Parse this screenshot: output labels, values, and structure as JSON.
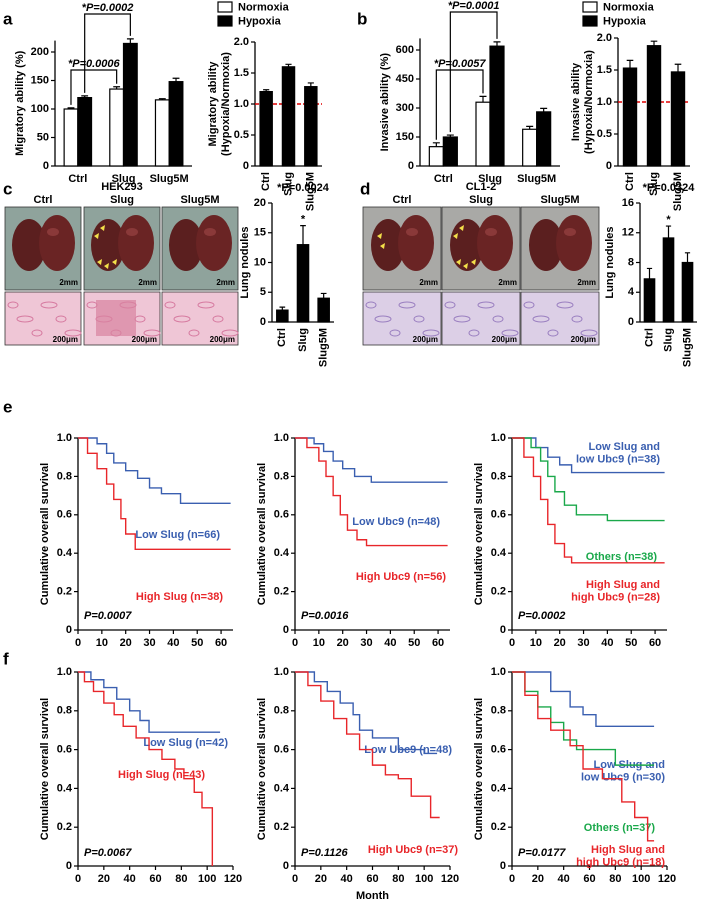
{
  "chart_data": [
    {
      "type": "bar",
      "panel": "a",
      "categories": [
        "Ctrl",
        "Slug",
        "Slug5M"
      ],
      "series": [
        {
          "name": "Normoxia",
          "color": "#ffffff",
          "values": [
            100,
            135,
            116
          ],
          "errors": [
            2,
            4,
            2
          ]
        },
        {
          "name": "Hypoxia",
          "color": "#000000",
          "values": [
            120,
            215,
            148
          ],
          "errors": [
            3,
            8,
            6
          ]
        }
      ],
      "ylim": [
        0,
        220
      ],
      "yticks": [
        0,
        50,
        100,
        150,
        200
      ],
      "ylabel": "Migratory ability (%)",
      "annotations": [
        "*P=0.0002",
        "*P=0.0006"
      ]
    },
    {
      "type": "bar",
      "categories": [
        "Ctrl",
        "Slug",
        "Slug5M"
      ],
      "values": [
        1.2,
        1.6,
        1.28
      ],
      "errors": [
        0.03,
        0.04,
        0.06
      ],
      "color": "#000000",
      "ylim": [
        0,
        2
      ],
      "yticks": [
        0,
        0.5,
        {
          "value": 1,
          "label": "1.0"
        },
        1.5,
        {
          "value": 2,
          "label": "2.0"
        }
      ],
      "ylabel": [
        "Migratory ability",
        "(Hypoxia/Normoxia)"
      ],
      "reference_line": {
        "value": 1,
        "color": "#e00000"
      }
    },
    {
      "type": "bar",
      "panel": "b",
      "categories": [
        "Ctrl",
        "Slug",
        "Slug5M"
      ],
      "series": [
        {
          "name": "Normoxia",
          "color": "#ffffff",
          "values": [
            100,
            330,
            190
          ],
          "errors": [
            20,
            30,
            15
          ]
        },
        {
          "name": "Hypoxia",
          "color": "#000000",
          "values": [
            150,
            620,
            280
          ],
          "errors": [
            10,
            22,
            18
          ]
        }
      ],
      "ylim": [
        0,
        660
      ],
      "yticks": [
        0,
        150,
        300,
        450,
        600
      ],
      "ylabel": "Invasive ability (%)",
      "annotations": [
        "*P=0.0001",
        "*P=0.0057"
      ]
    },
    {
      "type": "bar",
      "categories": [
        "Ctrl",
        "Slug",
        "Slug5M"
      ],
      "values": [
        1.53,
        1.88,
        1.47
      ],
      "errors": [
        0.12,
        0.07,
        0.12
      ],
      "color": "#000000",
      "ylim": [
        0,
        2
      ],
      "yticks": [
        0,
        0.5,
        {
          "value": 1,
          "label": "1.0"
        },
        1.5,
        {
          "value": 2,
          "label": "2.0"
        }
      ],
      "ylabel": [
        "Invasive ability",
        "(Hypoxia/Normoxia)"
      ],
      "reference_line": {
        "value": 1,
        "color": "#e00000"
      }
    },
    {
      "type": "bar",
      "title": "*P=0.0024",
      "categories": [
        "Ctrl",
        "Slug",
        "Slug5M"
      ],
      "values": [
        2,
        13,
        4
      ],
      "errors": [
        0.5,
        3.2,
        0.8
      ],
      "color": "#000000",
      "significance": [
        null,
        "*",
        null
      ],
      "ylim": [
        0,
        20
      ],
      "yticks": [
        0,
        5,
        10,
        15,
        20
      ],
      "ylabel": "Lung nodules"
    },
    {
      "type": "bar",
      "title": "*P=0.0324",
      "categories": [
        "Ctrl",
        "Slug",
        "Slug5M"
      ],
      "values": [
        5.8,
        11.3,
        8
      ],
      "errors": [
        1.4,
        1.6,
        1.3
      ],
      "color": "#000000",
      "significance": [
        null,
        "*",
        null
      ],
      "ylim": [
        0,
        16
      ],
      "yticks": [
        0,
        4,
        8,
        12,
        16
      ],
      "ylabel": "Lung nodules"
    },
    {
      "type": "line",
      "step": true,
      "panel": "e",
      "xlim": [
        0,
        65
      ],
      "xticks": [
        0,
        10,
        20,
        30,
        40,
        50,
        60
      ],
      "ylim": [
        0,
        1
      ],
      "yticks": [
        0,
        0.2,
        0.4,
        0.6,
        0.8,
        {
          "value": 1,
          "label": "1.0"
        }
      ],
      "ylabel": "Cumulative overall survival",
      "annotation": "P=0.0007",
      "series": [
        {
          "name": "Low Slug (n=66)",
          "color": "#3a5fb0",
          "x": [
            0,
            8,
            12,
            15,
            20,
            25,
            30,
            35,
            43,
            64
          ],
          "values": [
            1,
            0.97,
            0.92,
            0.87,
            0.83,
            0.79,
            0.74,
            0.71,
            0.66,
            0.66
          ]
        },
        {
          "name": "High Slug (n=38)",
          "color": "#e8262a",
          "x": [
            0,
            4,
            8,
            12,
            15,
            18,
            20,
            24,
            64
          ],
          "values": [
            1,
            0.92,
            0.84,
            0.76,
            0.68,
            0.58,
            0.5,
            0.42,
            0.42
          ]
        }
      ]
    },
    {
      "type": "line",
      "step": true,
      "xlim": [
        0,
        65
      ],
      "xticks": [
        0,
        10,
        20,
        30,
        40,
        50,
        60
      ],
      "ylim": [
        0,
        1
      ],
      "yticks": [
        0,
        0.2,
        0.4,
        0.6,
        0.8,
        {
          "value": 1,
          "label": "1.0"
        }
      ],
      "ylabel": "Cumulative overall survival",
      "annotation": "P=0.0016",
      "series": [
        {
          "name": "Low Ubc9 (n=48)",
          "color": "#3a5fb0",
          "x": [
            0,
            8,
            12,
            16,
            20,
            25,
            32,
            64
          ],
          "values": [
            1,
            0.97,
            0.93,
            0.88,
            0.84,
            0.8,
            0.77,
            0.77
          ]
        },
        {
          "name": "High Ubc9 (n=56)",
          "color": "#e8262a",
          "x": [
            0,
            5,
            10,
            13,
            16,
            19,
            22,
            26,
            30,
            64
          ],
          "values": [
            1,
            0.95,
            0.88,
            0.8,
            0.7,
            0.6,
            0.52,
            0.47,
            0.44,
            0.44
          ]
        }
      ]
    },
    {
      "type": "line",
      "step": true,
      "xlim": [
        0,
        65
      ],
      "xticks": [
        0,
        10,
        20,
        30,
        40,
        50,
        60
      ],
      "ylim": [
        0,
        1
      ],
      "yticks": [
        0,
        0.2,
        0.4,
        0.6,
        0.8,
        {
          "value": 1,
          "label": "1.0"
        }
      ],
      "ylabel": "Cumulative overall survival",
      "annotation": "P=0.0002",
      "series": [
        {
          "name": "Low Slug and\nlow Ubc9 (n=38)",
          "color": "#3a5fb0",
          "x": [
            0,
            10,
            15,
            20,
            25,
            64
          ],
          "values": [
            1,
            0.95,
            0.9,
            0.86,
            0.82,
            0.82
          ]
        },
        {
          "name": "Others (n=38)",
          "color": "#1aa84a",
          "x": [
            0,
            8,
            12,
            15,
            18,
            22,
            27,
            40,
            64
          ],
          "values": [
            1,
            0.95,
            0.88,
            0.8,
            0.72,
            0.65,
            0.6,
            0.57,
            0.57
          ]
        },
        {
          "name": "High Slug and\nhigh Ubc9 (n=28)",
          "color": "#e8262a",
          "x": [
            0,
            5,
            9,
            12,
            15,
            18,
            22,
            25,
            64
          ],
          "values": [
            1,
            0.9,
            0.8,
            0.68,
            0.55,
            0.45,
            0.38,
            0.35,
            0.35
          ]
        }
      ]
    },
    {
      "type": "line",
      "step": true,
      "panel": "f",
      "xlim": [
        0,
        120
      ],
      "xticks": [
        0,
        20,
        40,
        60,
        80,
        100,
        120
      ],
      "ylim": [
        0,
        1
      ],
      "yticks": [
        0,
        0.2,
        0.4,
        0.6,
        0.8,
        {
          "value": 1,
          "label": "1.0"
        }
      ],
      "ylabel": "Cumulative overall survival",
      "annotation": "P=0.0067",
      "series": [
        {
          "name": "Low Slug (n=42)",
          "color": "#3a5fb0",
          "x": [
            0,
            10,
            20,
            30,
            40,
            48,
            55,
            110
          ],
          "values": [
            1,
            0.96,
            0.92,
            0.86,
            0.8,
            0.75,
            0.69,
            0.69
          ]
        },
        {
          "name": "High Slug (n=43)",
          "color": "#e8262a",
          "x": [
            0,
            5,
            12,
            20,
            28,
            35,
            45,
            55,
            65,
            75,
            82,
            90,
            96,
            104
          ],
          "values": [
            1,
            0.95,
            0.9,
            0.84,
            0.78,
            0.72,
            0.66,
            0.6,
            0.55,
            0.5,
            0.45,
            0.38,
            0.3,
            0
          ]
        }
      ]
    },
    {
      "type": "line",
      "step": true,
      "xlim": [
        0,
        120
      ],
      "xticks": [
        0,
        20,
        40,
        60,
        80,
        100,
        120
      ],
      "xlabel": "Month",
      "ylim": [
        0,
        1
      ],
      "yticks": [
        0,
        0.2,
        0.4,
        0.6,
        0.8,
        {
          "value": 1,
          "label": "1.0"
        }
      ],
      "ylabel": "Cumulative overall survival",
      "annotation": "P=0.1126",
      "series": [
        {
          "name": "Low Ubc9 (n=48)",
          "color": "#3a5fb0",
          "x": [
            0,
            15,
            25,
            35,
            45,
            50,
            60,
            80,
            100,
            110
          ],
          "values": [
            1,
            0.95,
            0.9,
            0.84,
            0.78,
            0.7,
            0.66,
            0.6,
            0.58,
            0.58
          ]
        },
        {
          "name": "High Ubc9 (n=37)",
          "color": "#e8262a",
          "x": [
            0,
            10,
            20,
            30,
            40,
            50,
            60,
            70,
            80,
            90,
            105,
            112
          ],
          "values": [
            1,
            0.93,
            0.85,
            0.76,
            0.68,
            0.6,
            0.52,
            0.47,
            0.45,
            0.36,
            0.25,
            0.25
          ]
        }
      ]
    },
    {
      "type": "line",
      "step": true,
      "xlim": [
        0,
        120
      ],
      "xticks": [
        0,
        20,
        40,
        60,
        80,
        100,
        120
      ],
      "ylim": [
        0,
        1
      ],
      "yticks": [
        0,
        0.2,
        0.4,
        0.6,
        0.8,
        {
          "value": 1,
          "label": "1.0"
        }
      ],
      "ylabel": "Cumulative overall survival",
      "annotation": "P=0.0177",
      "series": [
        {
          "name": "Low Slug and\nlow Ubc9 (n=30)",
          "color": "#3a5fb0",
          "x": [
            0,
            30,
            45,
            55,
            65,
            110
          ],
          "values": [
            1,
            0.9,
            0.82,
            0.78,
            0.72,
            0.72
          ]
        },
        {
          "name": "Others (n=37)",
          "color": "#1aa84a",
          "x": [
            0,
            10,
            20,
            30,
            40,
            50,
            80,
            110
          ],
          "values": [
            1,
            0.9,
            0.82,
            0.74,
            0.65,
            0.6,
            0.52,
            0.52
          ]
        },
        {
          "name": "High Slug and\nhigh Ubc9 (n=18)",
          "color": "#e8262a",
          "x": [
            0,
            10,
            20,
            30,
            45,
            55,
            70,
            85,
            95,
            105,
            110
          ],
          "values": [
            1,
            0.88,
            0.76,
            0.7,
            0.62,
            0.5,
            0.45,
            0.33,
            0.25,
            0.13,
            0.13
          ]
        }
      ]
    }
  ],
  "photo_panels": [
    {
      "letter": "c",
      "cell_line": "HEK293",
      "conditions": [
        "Ctrl",
        "Slug",
        "Slug5M"
      ],
      "scale_top": "2mm",
      "scale_bottom": "200μm"
    },
    {
      "letter": "d",
      "cell_line": "CL1-2",
      "conditions": [
        "Ctrl",
        "Slug",
        "Slug5M"
      ],
      "scale_top": "2mm",
      "scale_bottom": "200μm"
    }
  ]
}
